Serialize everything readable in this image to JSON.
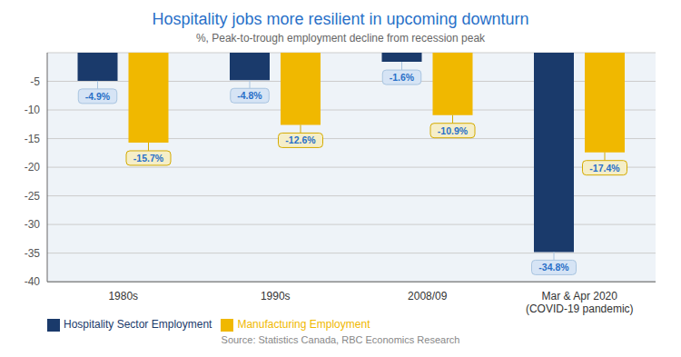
{
  "chart_data": {
    "type": "bar",
    "title": "Hospitality jobs more resilient in upcoming downturn",
    "subtitle": "%, Peak-to-trough employment decline from recession peak",
    "annotations": [
      "Source: Statistics Canada, RBC Economics Research"
    ],
    "categories": [
      "1980s",
      "1990s",
      "2008/09",
      "Mar & Apr 2020\n(COVID-19 pandemic)"
    ],
    "series": [
      {
        "name": "Hospitality Sector Employment",
        "color": "#1a3a6b",
        "values": [
          -4.9,
          -4.8,
          -1.6,
          -34.8
        ],
        "value_labels": [
          "-4.9%",
          "-4.8%",
          "-1.6%",
          "-34.8%"
        ]
      },
      {
        "name": "Manufacturing Employment",
        "color": "#f0b800",
        "values": [
          -15.7,
          -12.6,
          -10.9,
          -17.4
        ],
        "value_labels": [
          "-15.7%",
          "-12.6%",
          "-10.9%",
          "-17.4%"
        ]
      }
    ],
    "ylim": [
      -40,
      0
    ],
    "yticks": [
      -40,
      -35,
      -30,
      -25,
      -20,
      -15,
      -10,
      -5
    ],
    "grid": true,
    "legend": "lower left",
    "data_labels": true
  }
}
